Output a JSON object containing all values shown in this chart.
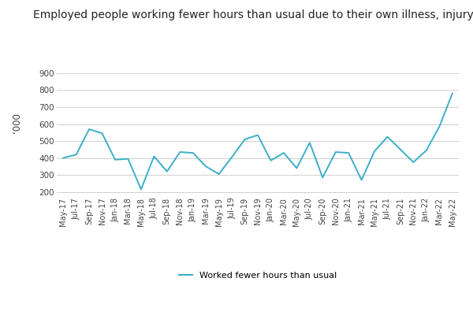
{
  "title": "Employed people working fewer hours than usual due to their own illness, injury or sick leave",
  "ylabel": "‘000",
  "legend_label": "Worked fewer hours than usual",
  "line_color": "#3daec8",
  "background_color": "#ffffff",
  "grid_color": "#d0d0d0",
  "ylim": [
    180,
    960
  ],
  "yticks": [
    200,
    300,
    400,
    500,
    600,
    700,
    800,
    900
  ],
  "labels": [
    "May-17",
    "Jul-17",
    "Sep-17",
    "Nov-17",
    "Jan-18",
    "Mar-18",
    "May-18",
    "Jul-18",
    "Sep-18",
    "Nov-18",
    "Jan-19",
    "Mar-19",
    "May-19",
    "Jul-19",
    "Sep-19",
    "Nov-19",
    "Jan-20",
    "Mar-20",
    "May-20",
    "Jul-20",
    "Sep-20",
    "Nov-20",
    "Jan-21",
    "Mar-21",
    "May-21",
    "Jul-21",
    "Sep-21",
    "Nov-21",
    "Jan-22",
    "Mar-22",
    "May-22"
  ],
  "values": [
    400,
    420,
    570,
    545,
    390,
    395,
    215,
    410,
    320,
    435,
    430,
    350,
    305,
    405,
    510,
    535,
    385,
    430,
    340,
    490,
    285,
    435,
    430,
    270,
    440,
    525,
    450,
    375,
    445,
    585,
    780
  ],
  "title_fontsize": 10,
  "tick_fontsize": 7.5,
  "ylabel_fontsize": 8.5
}
